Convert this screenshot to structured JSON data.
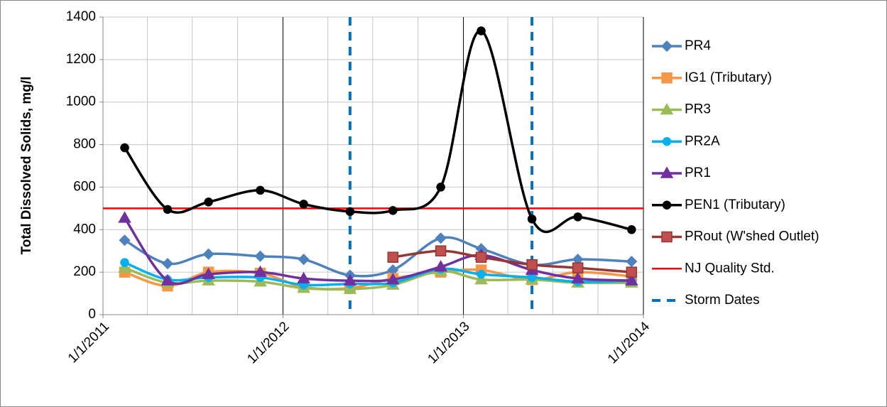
{
  "chart_data": {
    "type": "line",
    "y_label": "Total Dissolved Solids, mg/l",
    "x": [
      "2011-02-14",
      "2011-05-12",
      "2011-08-03",
      "2011-11-16",
      "2012-02-12",
      "2012-05-16",
      "2012-08-11",
      "2012-11-16",
      "2013-02-06",
      "2013-05-20",
      "2013-08-21",
      "2013-12-08"
    ],
    "xlim": [
      "2011-01-01",
      "2014-01-01"
    ],
    "xticks": [
      {
        "value": "2011-01-01",
        "label": "1/1/2011"
      },
      {
        "value": "2012-01-01",
        "label": "1/1/2012"
      },
      {
        "value": "2013-01-01",
        "label": "1/1/2013"
      },
      {
        "value": "2014-01-01",
        "label": "1/1/2014"
      }
    ],
    "ylim": [
      0,
      1400
    ],
    "yticks": [
      0,
      200,
      400,
      600,
      800,
      1000,
      1200,
      1400
    ],
    "grid": true,
    "smooth": true,
    "legend": "right",
    "series": [
      {
        "name": "PR4",
        "color": "#4f81bd",
        "marker": "diamond",
        "values": [
          350,
          240,
          285,
          275,
          260,
          185,
          210,
          360,
          310,
          235,
          260,
          250
        ]
      },
      {
        "name": "IG1 (Tributary)",
        "color": "#f79646",
        "marker": "square",
        "values": [
          200,
          135,
          200,
          195,
          130,
          125,
          170,
          200,
          210,
          165,
          200,
          180
        ]
      },
      {
        "name": "PR3",
        "color": "#9bbb59",
        "marker": "triangle",
        "values": [
          220,
          150,
          160,
          155,
          125,
          120,
          140,
          205,
          165,
          165,
          150,
          150
        ]
      },
      {
        "name": "PR2A",
        "color": "#00b0f0",
        "marker": "circle",
        "values": [
          245,
          165,
          175,
          175,
          140,
          145,
          150,
          215,
          190,
          175,
          155,
          160
        ]
      },
      {
        "name": "PR1",
        "color": "#7030a0",
        "marker": "triangle",
        "values": [
          455,
          160,
          190,
          200,
          170,
          160,
          165,
          225,
          280,
          210,
          170,
          160
        ]
      },
      {
        "name": "PEN1 (Tributary)",
        "color": "#000000",
        "marker": "circle",
        "values": [
          785,
          495,
          530,
          585,
          520,
          485,
          490,
          600,
          1335,
          450,
          460,
          400
        ]
      },
      {
        "name": "PRout (W'shed Outlet)",
        "color": "#953735",
        "marker": "square",
        "values": [
          null,
          null,
          null,
          null,
          null,
          null,
          270,
          300,
          270,
          235,
          220,
          200
        ]
      }
    ],
    "standard": {
      "name": "NJ Quality Std.",
      "color": "#ff0000",
      "value": 500
    },
    "storms": {
      "name": "Storm Dates",
      "color": "#0070c0",
      "x": [
        "2012-05-16",
        "2013-05-20"
      ]
    }
  }
}
